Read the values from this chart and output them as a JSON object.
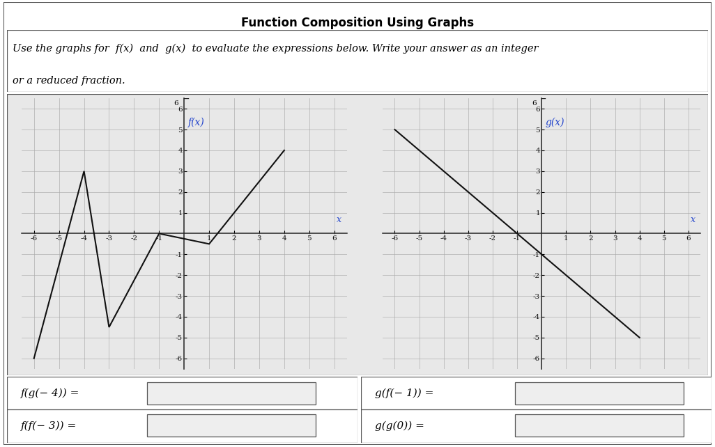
{
  "title": "Function Composition Using Graphs",
  "fx_points": [
    [
      -6,
      -6
    ],
    [
      -4,
      3
    ],
    [
      -3,
      -4.5
    ],
    [
      -1,
      0
    ],
    [
      1,
      -0.5
    ],
    [
      4,
      4
    ]
  ],
  "gx_points": [
    [
      -6,
      5
    ],
    [
      -1,
      0
    ],
    [
      4,
      -5
    ]
  ],
  "fx_label": "f(x)",
  "gx_label": "g(x)",
  "xlim": [
    -6.5,
    6.5
  ],
  "ylim": [
    -6.5,
    6.5
  ],
  "xticks": [
    -6,
    -5,
    -4,
    -3,
    -2,
    -1,
    1,
    2,
    3,
    4,
    5,
    6
  ],
  "yticks": [
    -6,
    -5,
    -4,
    -3,
    -2,
    -1,
    1,
    2,
    3,
    4,
    5,
    6
  ],
  "expr_left_top": "f(g(− 4)) =",
  "expr_left_bot": "f(f(− 3)) =",
  "expr_right_top": "g(f(− 1)) =",
  "expr_right_bot": "g(g(0)) =",
  "bg_color": "#e8e8e8",
  "grid_color": "#aaaaaa",
  "line_color": "#111111",
  "label_color": "#2244cc",
  "axis_color": "#222222",
  "title_fontsize": 12,
  "subtitle_fontsize": 10.5,
  "tick_fontsize": 7.5,
  "expr_fontsize": 11
}
